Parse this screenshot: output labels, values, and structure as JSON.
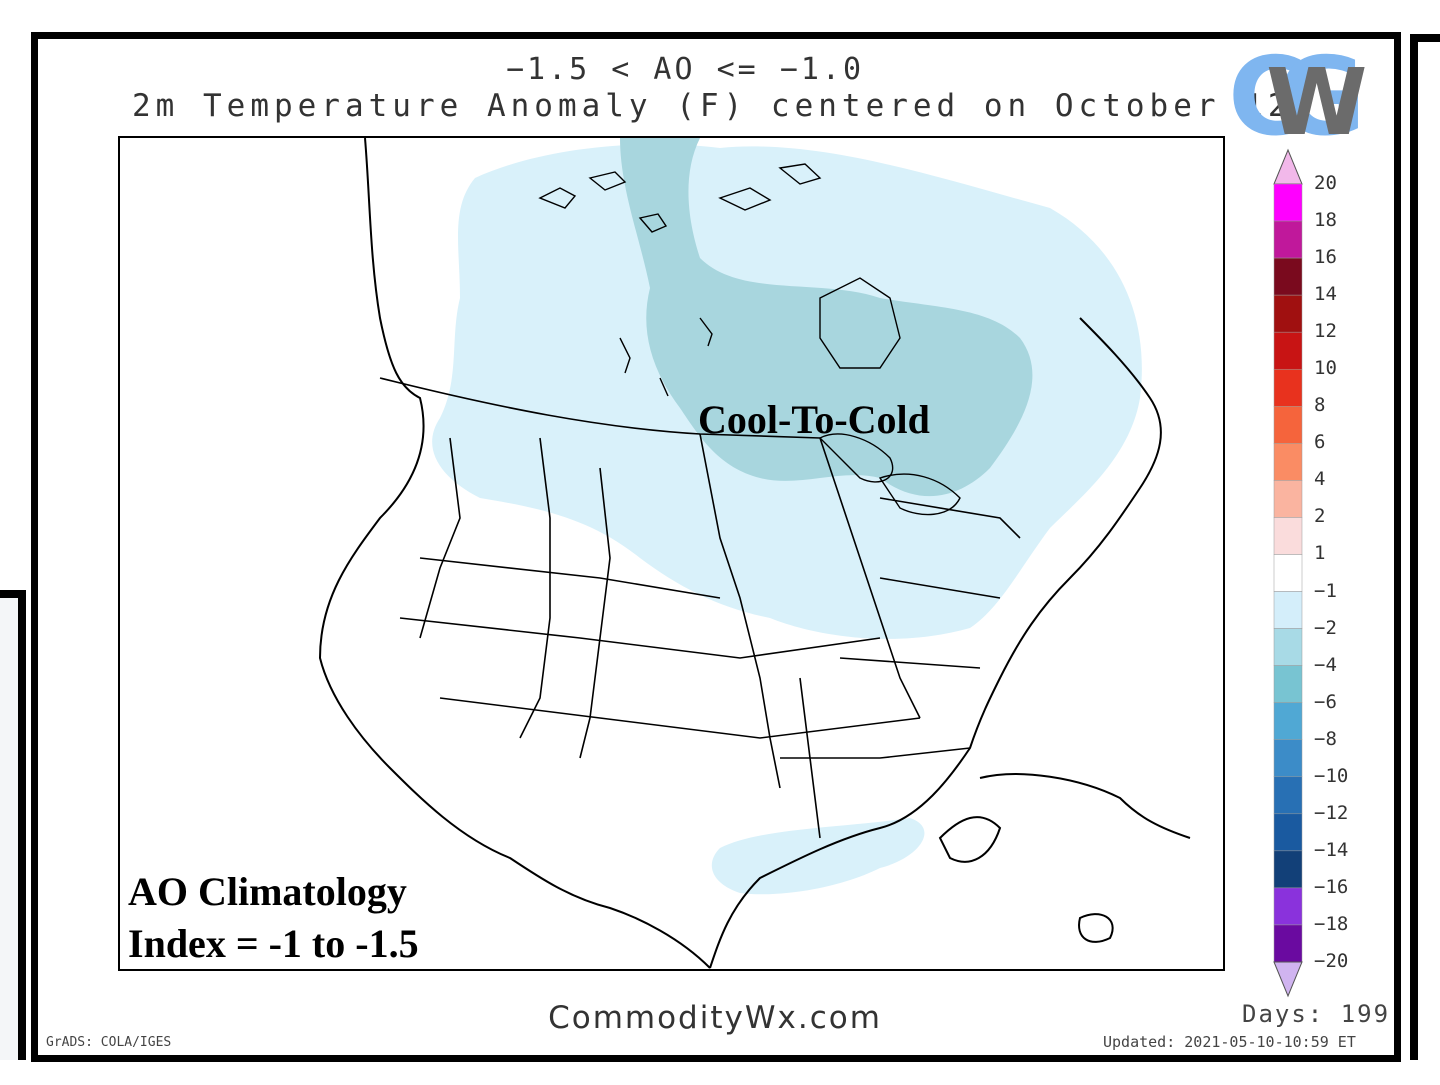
{
  "title": {
    "line1": "−1.5 < AO <= −1.0",
    "line2": "2m Temperature Anomaly (F) centered on October 12"
  },
  "logo": {
    "letters": "CWG",
    "colors": {
      "back": "#7fb6f0",
      "front": "#6b6b6b"
    }
  },
  "annotations": {
    "regime": "Cool-To-Cold",
    "climatology_line1": "AO Climatology",
    "climatology_line2": "Index = -1 to -1.5"
  },
  "footer": {
    "site": "CommodityWx.com",
    "days": "Days: 199",
    "updated": "Updated: 2021-05-10-10:59 ET",
    "software": "GrADS: COLA/IGES"
  },
  "colorbar": {
    "labels": [
      "20",
      "18",
      "16",
      "14",
      "12",
      "10",
      "8",
      "6",
      "4",
      "2",
      "1",
      "−1",
      "−2",
      "−4",
      "−6",
      "−8",
      "−10",
      "−12",
      "−14",
      "−16",
      "−18",
      "−20"
    ],
    "colors": [
      "#ff00ff",
      "#c0189b",
      "#7a0a1e",
      "#a01010",
      "#c81414",
      "#e8321e",
      "#f5643c",
      "#fa8c64",
      "#fab4a0",
      "#fadcdc",
      "#ffffff",
      "#d4eefa",
      "#a8dae6",
      "#78c4d2",
      "#50a8d4",
      "#3c8cc8",
      "#2870b4",
      "#1a5aa0",
      "#124078",
      "#8a32dc",
      "#6a0aa0"
    ],
    "top_cap_color": "#f2b8ea",
    "bottom_cap_color": "#d0b4f0"
  },
  "map": {
    "shading": {
      "anomaly_-1_to_-2": "#d9f1fa",
      "anomaly_-2_to_-4": "#a8d6de"
    }
  }
}
